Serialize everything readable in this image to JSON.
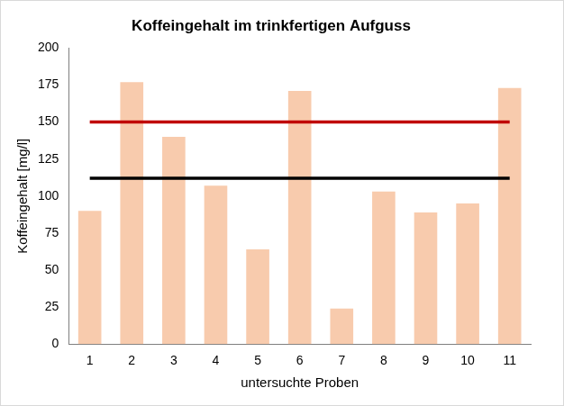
{
  "chart_data": {
    "type": "bar",
    "title": "Koffeingehalt im trinkfertigen Aufguss",
    "x_label": "untersuchte Proben",
    "y_label": "Koffeingehalt [mg/l]",
    "categories": [
      "1",
      "2",
      "3",
      "4",
      "5",
      "6",
      "7",
      "8",
      "9",
      "10",
      "11"
    ],
    "series": [
      {
        "type": "bar",
        "color": "#f8cbad",
        "values": [
          90,
          177,
          140,
          107,
          64,
          171,
          24,
          103,
          89,
          95,
          173
        ]
      },
      {
        "type": "line",
        "color": "#c00000",
        "marker": "none",
        "line_style": "solid",
        "values": [
          150,
          150,
          150,
          150,
          150,
          150,
          150,
          150,
          150,
          150,
          150
        ]
      },
      {
        "type": "line",
        "color": "#000000",
        "marker": "none",
        "line_style": "solid",
        "values": [
          112,
          112,
          112,
          112,
          112,
          112,
          112,
          112,
          112,
          112,
          112
        ]
      }
    ],
    "ylim": [
      0,
      200
    ],
    "yticks": [
      0,
      25,
      50,
      75,
      100,
      125,
      150,
      175,
      200
    ],
    "grid": false
  }
}
